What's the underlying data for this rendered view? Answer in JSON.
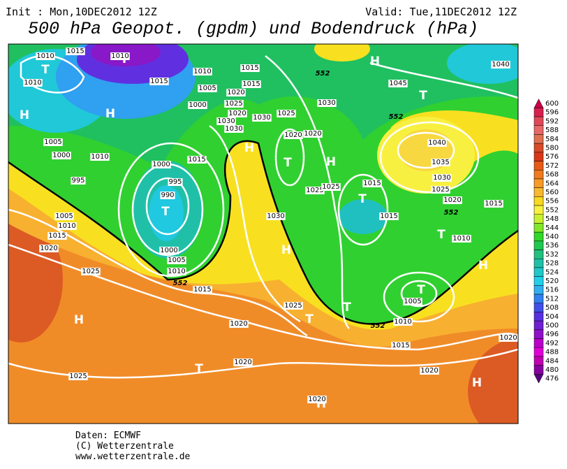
{
  "header": {
    "init": "Init : Mon,10DEC2012 12Z",
    "valid": "Valid: Tue,11DEC2012 12Z",
    "title": "500 hPa Geopot. (gpdm) und Bodendruck (hPa)"
  },
  "map": {
    "pressure_centers": [
      "T",
      "H",
      "H",
      "T",
      "H",
      "T",
      "T",
      "H",
      "T",
      "H",
      "H",
      "T",
      "T",
      "H",
      "T",
      "T",
      "T",
      "H",
      "T",
      "H",
      "H"
    ],
    "isobar_labels": [
      1010,
      1015,
      1010,
      1010,
      1015,
      1010,
      1005,
      1000,
      1015,
      1015,
      1020,
      1025,
      1020,
      1030,
      1030,
      1030,
      1025,
      1030,
      1045,
      1040,
      1020,
      1020,
      1005,
      1010,
      1000,
      995,
      1000,
      1015,
      995,
      990,
      1025,
      1025,
      1015,
      1040,
      1035,
      1030,
      1025,
      1020,
      1015,
      1015,
      1010,
      1005,
      1010,
      1015,
      1020,
      1025,
      1000,
      1005,
      1010,
      1015,
      1030,
      1025,
      1020,
      1005,
      1010,
      1015,
      1020,
      1025,
      1020,
      1020,
      1020
    ],
    "contour_labels": [
      552,
      552,
      552,
      552,
      552
    ]
  },
  "colorbar": {
    "values": [
      600,
      596,
      592,
      588,
      584,
      580,
      576,
      572,
      568,
      564,
      560,
      556,
      552,
      548,
      544,
      540,
      536,
      532,
      528,
      524,
      520,
      516,
      512,
      508,
      504,
      500,
      496,
      492,
      488,
      484,
      480,
      476
    ],
    "colors": [
      "#c8004a",
      "#d8204e",
      "#e04858",
      "#e86868",
      "#e07050",
      "#d84a28",
      "#d83818",
      "#e85a18",
      "#f07a20",
      "#f89a28",
      "#f8b830",
      "#f8d820",
      "#f8f040",
      "#c8f030",
      "#80e828",
      "#30d828",
      "#20c850",
      "#20c080",
      "#20c0a8",
      "#20c8c8",
      "#20d0e8",
      "#30b0f0",
      "#3080f0",
      "#4050e8",
      "#5830e0",
      "#7020d0",
      "#9010c8",
      "#b800c8",
      "#e000d8",
      "#c000b0",
      "#8800a0",
      "#580080"
    ]
  },
  "footer": {
    "source": "Daten: ECMWF",
    "copyright": "(C) Wetterzentrale",
    "url": "www.wetterzentrale.de"
  }
}
